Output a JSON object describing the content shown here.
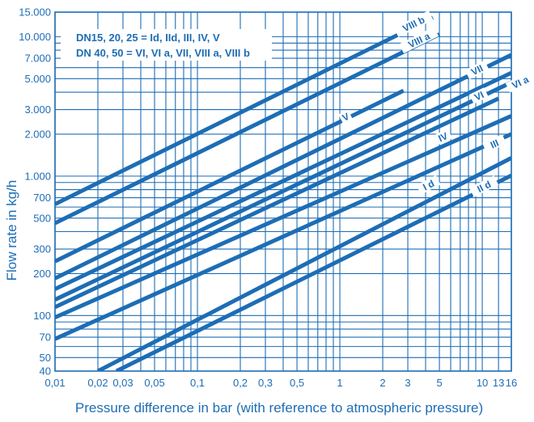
{
  "chart_data": {
    "type": "line",
    "x_scale": "log",
    "y_scale": "log",
    "xlim": [
      0.01,
      16
    ],
    "ylim": [
      40,
      15000
    ],
    "xlabel": "Pressure difference in bar (with reference to atmospheric pressure)",
    "ylabel": "Flow rate in kg/h",
    "grid": true,
    "x_ticks": [
      {
        "value": 0.01,
        "label": "0,01"
      },
      {
        "value": 0.02,
        "label": "0,02"
      },
      {
        "value": 0.03,
        "label": "0,03"
      },
      {
        "value": 0.05,
        "label": "0,05"
      },
      {
        "value": 0.1,
        "label": "0,1"
      },
      {
        "value": 0.2,
        "label": "0,2"
      },
      {
        "value": 0.3,
        "label": "0,3"
      },
      {
        "value": 0.5,
        "label": "0,5"
      },
      {
        "value": 1,
        "label": "1"
      },
      {
        "value": 2,
        "label": "2"
      },
      {
        "value": 3,
        "label": "3"
      },
      {
        "value": 5,
        "label": "5"
      },
      {
        "value": 10,
        "label": "10"
      },
      {
        "value": 13,
        "label": "13"
      },
      {
        "value": 16,
        "label": "16"
      }
    ],
    "y_ticks": [
      {
        "value": 40,
        "label": "40"
      },
      {
        "value": 50,
        "label": "50"
      },
      {
        "value": 70,
        "label": "70"
      },
      {
        "value": 100,
        "label": "100"
      },
      {
        "value": 200,
        "label": "200"
      },
      {
        "value": 300,
        "label": "300"
      },
      {
        "value": 500,
        "label": "500"
      },
      {
        "value": 700,
        "label": "700"
      },
      {
        "value": 1000,
        "label": "1.000"
      },
      {
        "value": 2000,
        "label": "2.000"
      },
      {
        "value": 3000,
        "label": "3.000"
      },
      {
        "value": 5000,
        "label": "5.000"
      },
      {
        "value": 7000,
        "label": "7.000"
      },
      {
        "value": 10000,
        "label": "10.000"
      },
      {
        "value": 15000,
        "label": "15.000"
      }
    ],
    "x_grid": [
      0.01,
      0.02,
      0.03,
      0.04,
      0.05,
      0.06,
      0.07,
      0.08,
      0.09,
      0.1,
      0.2,
      0.3,
      0.4,
      0.5,
      0.6,
      0.7,
      0.8,
      0.9,
      1,
      2,
      3,
      4,
      5,
      6,
      7,
      8,
      9,
      10,
      13,
      16
    ],
    "y_grid": [
      40,
      50,
      60,
      70,
      80,
      90,
      100,
      200,
      300,
      400,
      500,
      600,
      700,
      800,
      900,
      1000,
      2000,
      3000,
      4000,
      5000,
      6000,
      7000,
      8000,
      9000,
      10000,
      15000
    ],
    "legend": [
      "DN15, 20, 25 = Id, IId, III, IV, V",
      "DN 40, 50 = VI, VI a, VII, VIII a, VIII b"
    ],
    "legend_position": "top-left",
    "series": [
      {
        "name": "VIII b",
        "x": [
          0.01,
          4.5
        ],
        "y": [
          630,
          13700
        ],
        "label_at": [
          3.3,
          12300
        ]
      },
      {
        "name": "VIII a",
        "x": [
          0.01,
          5
        ],
        "y": [
          460,
          10400
        ],
        "label_at": [
          3.6,
          9400
        ]
      },
      {
        "name": "V",
        "x": [
          0.01,
          2.8
        ],
        "y": [
          245,
          4100
        ],
        "label_at": [
          1.1,
          2650
        ]
      },
      {
        "name": "VII",
        "x": [
          0.01,
          16
        ],
        "y": [
          185,
          7400
        ],
        "label_at": [
          9.2,
          5750
        ]
      },
      {
        "name": "VI a",
        "x": [
          0.01,
          16
        ],
        "y": [
          155,
          5500
        ],
        "label_at": [
          18.5,
          4700
        ]
      },
      {
        "name": "VI",
        "x": [
          0.01,
          16
        ],
        "y": [
          130,
          4700
        ],
        "label_at": [
          9.5,
          3750
        ]
      },
      {
        "name": "",
        "x": [
          0.01,
          13
        ],
        "y": [
          115,
          3600
        ]
      },
      {
        "name": "IV",
        "x": [
          0.01,
          16
        ],
        "y": [
          97,
          2700
        ],
        "label_at": [
          5.3,
          1900
        ]
      },
      {
        "name": "III",
        "x": [
          0.01,
          16
        ],
        "y": [
          68,
          2000
        ],
        "label_at": [
          12.2,
          1700
        ]
      },
      {
        "name": "I d",
        "x": [
          0.02,
          16
        ],
        "y": [
          40,
          1350
        ],
        "label_at": [
          4.2,
          860
        ]
      },
      {
        "name": "II d",
        "x": [
          0.027,
          16
        ],
        "y": [
          40,
          1010
        ],
        "label_at": [
          10.3,
          840
        ]
      }
    ]
  },
  "colors": {
    "line": "#1d6db5",
    "grid": "#1d6db5",
    "text": "#1d6db5",
    "background": "#ffffff"
  }
}
